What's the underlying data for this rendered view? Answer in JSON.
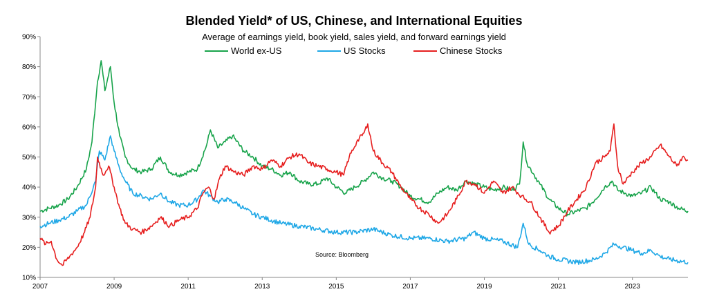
{
  "chart_data": {
    "type": "line",
    "title": "Blended Yield* of US, Chinese, and International Equities",
    "subtitle": "Average of earnings yield, book yield, sales yield, and forward earnings yield",
    "xlabel": "",
    "ylabel": "",
    "x_ticks": [
      "2007",
      "2009",
      "2011",
      "2013",
      "2015",
      "2017",
      "2019",
      "2021",
      "2023"
    ],
    "y_ticks": [
      "10%",
      "20%",
      "30%",
      "40%",
      "50%",
      "60%",
      "70%",
      "80%",
      "90%"
    ],
    "xlim": [
      2007.0,
      2024.5
    ],
    "ylim": [
      10,
      90
    ],
    "grid": false,
    "legend_position": "top-center",
    "annotation": "Source: Bloomberg",
    "series": [
      {
        "name": "World ex-US",
        "color": "#17a34a",
        "points": [
          [
            2007.0,
            32
          ],
          [
            2007.25,
            33
          ],
          [
            2007.5,
            34
          ],
          [
            2007.75,
            36
          ],
          [
            2008.0,
            40
          ],
          [
            2008.25,
            46
          ],
          [
            2008.4,
            55
          ],
          [
            2008.55,
            75
          ],
          [
            2008.65,
            82
          ],
          [
            2008.75,
            72
          ],
          [
            2008.9,
            80
          ],
          [
            2009.0,
            68
          ],
          [
            2009.15,
            57
          ],
          [
            2009.3,
            50
          ],
          [
            2009.5,
            46
          ],
          [
            2009.75,
            45
          ],
          [
            2010.0,
            46
          ],
          [
            2010.25,
            50
          ],
          [
            2010.5,
            45
          ],
          [
            2010.75,
            44
          ],
          [
            2011.0,
            45
          ],
          [
            2011.25,
            46
          ],
          [
            2011.5,
            54
          ],
          [
            2011.6,
            59
          ],
          [
            2011.8,
            53
          ],
          [
            2012.0,
            55
          ],
          [
            2012.2,
            57
          ],
          [
            2012.5,
            52
          ],
          [
            2012.75,
            50
          ],
          [
            2013.0,
            47
          ],
          [
            2013.25,
            46
          ],
          [
            2013.5,
            44
          ],
          [
            2013.75,
            45
          ],
          [
            2014.0,
            42
          ],
          [
            2014.25,
            41
          ],
          [
            2014.5,
            41
          ],
          [
            2014.75,
            43
          ],
          [
            2015.0,
            40
          ],
          [
            2015.25,
            38
          ],
          [
            2015.5,
            40
          ],
          [
            2015.75,
            42
          ],
          [
            2016.0,
            45
          ],
          [
            2016.25,
            43
          ],
          [
            2016.5,
            42
          ],
          [
            2016.75,
            40
          ],
          [
            2017.0,
            37
          ],
          [
            2017.25,
            36
          ],
          [
            2017.5,
            35
          ],
          [
            2017.75,
            38
          ],
          [
            2018.0,
            40
          ],
          [
            2018.25,
            39
          ],
          [
            2018.5,
            42
          ],
          [
            2018.75,
            41
          ],
          [
            2019.0,
            40
          ],
          [
            2019.25,
            39
          ],
          [
            2019.5,
            40
          ],
          [
            2019.75,
            39
          ],
          [
            2019.95,
            41
          ],
          [
            2020.05,
            55
          ],
          [
            2020.15,
            48
          ],
          [
            2020.35,
            44
          ],
          [
            2020.5,
            41
          ],
          [
            2020.75,
            36
          ],
          [
            2021.0,
            33
          ],
          [
            2021.25,
            31
          ],
          [
            2021.5,
            32
          ],
          [
            2021.75,
            33
          ],
          [
            2022.0,
            36
          ],
          [
            2022.25,
            40
          ],
          [
            2022.45,
            42
          ],
          [
            2022.6,
            39
          ],
          [
            2022.8,
            38
          ],
          [
            2023.0,
            37
          ],
          [
            2023.25,
            38
          ],
          [
            2023.5,
            40
          ],
          [
            2023.75,
            36
          ],
          [
            2024.0,
            35
          ],
          [
            2024.25,
            33
          ],
          [
            2024.5,
            32
          ]
        ]
      },
      {
        "name": "US Stocks",
        "color": "#1ea7e6",
        "points": [
          [
            2007.0,
            27
          ],
          [
            2007.25,
            28
          ],
          [
            2007.5,
            29
          ],
          [
            2007.75,
            30
          ],
          [
            2008.0,
            32
          ],
          [
            2008.25,
            34
          ],
          [
            2008.5,
            42
          ],
          [
            2008.6,
            52
          ],
          [
            2008.75,
            49
          ],
          [
            2008.9,
            57
          ],
          [
            2009.0,
            52
          ],
          [
            2009.15,
            46
          ],
          [
            2009.3,
            42
          ],
          [
            2009.5,
            38
          ],
          [
            2009.75,
            37
          ],
          [
            2010.0,
            36
          ],
          [
            2010.25,
            38
          ],
          [
            2010.5,
            35
          ],
          [
            2010.75,
            34
          ],
          [
            2011.0,
            34
          ],
          [
            2011.25,
            36
          ],
          [
            2011.4,
            39
          ],
          [
            2011.6,
            37
          ],
          [
            2011.8,
            35
          ],
          [
            2012.0,
            36
          ],
          [
            2012.25,
            35
          ],
          [
            2012.5,
            33
          ],
          [
            2012.75,
            31
          ],
          [
            2013.0,
            30
          ],
          [
            2013.5,
            28
          ],
          [
            2014.0,
            27
          ],
          [
            2014.5,
            26
          ],
          [
            2015.0,
            25
          ],
          [
            2015.5,
            25
          ],
          [
            2016.0,
            26
          ],
          [
            2016.5,
            24
          ],
          [
            2017.0,
            23
          ],
          [
            2017.5,
            23
          ],
          [
            2018.0,
            22
          ],
          [
            2018.5,
            23
          ],
          [
            2018.7,
            25
          ],
          [
            2019.0,
            23
          ],
          [
            2019.5,
            22
          ],
          [
            2019.9,
            20
          ],
          [
            2020.05,
            28
          ],
          [
            2020.2,
            21
          ],
          [
            2020.5,
            19
          ],
          [
            2020.75,
            17
          ],
          [
            2021.0,
            16
          ],
          [
            2021.5,
            15
          ],
          [
            2022.0,
            16
          ],
          [
            2022.25,
            18
          ],
          [
            2022.5,
            21
          ],
          [
            2022.75,
            20
          ],
          [
            2023.0,
            19
          ],
          [
            2023.25,
            18
          ],
          [
            2023.5,
            19
          ],
          [
            2023.75,
            17
          ],
          [
            2024.0,
            16
          ],
          [
            2024.5,
            15
          ]
        ]
      },
      {
        "name": "Chinese Stocks",
        "color": "#e61e1e",
        "points": [
          [
            2007.0,
            23
          ],
          [
            2007.15,
            21
          ],
          [
            2007.3,
            22
          ],
          [
            2007.45,
            16
          ],
          [
            2007.6,
            14
          ],
          [
            2007.8,
            17
          ],
          [
            2008.0,
            20
          ],
          [
            2008.2,
            25
          ],
          [
            2008.35,
            30
          ],
          [
            2008.5,
            40
          ],
          [
            2008.55,
            50
          ],
          [
            2008.7,
            44
          ],
          [
            2008.85,
            47
          ],
          [
            2009.0,
            40
          ],
          [
            2009.15,
            33
          ],
          [
            2009.3,
            28
          ],
          [
            2009.5,
            26
          ],
          [
            2009.75,
            25
          ],
          [
            2010.0,
            27
          ],
          [
            2010.25,
            30
          ],
          [
            2010.5,
            27
          ],
          [
            2010.75,
            29
          ],
          [
            2011.0,
            30
          ],
          [
            2011.25,
            33
          ],
          [
            2011.4,
            38
          ],
          [
            2011.55,
            40
          ],
          [
            2011.7,
            36
          ],
          [
            2011.85,
            43
          ],
          [
            2012.0,
            47
          ],
          [
            2012.25,
            45
          ],
          [
            2012.5,
            44
          ],
          [
            2012.75,
            47
          ],
          [
            2013.0,
            46
          ],
          [
            2013.25,
            49
          ],
          [
            2013.5,
            47
          ],
          [
            2013.75,
            50
          ],
          [
            2014.0,
            51
          ],
          [
            2014.25,
            48
          ],
          [
            2014.5,
            47
          ],
          [
            2014.75,
            46
          ],
          [
            2015.0,
            45
          ],
          [
            2015.2,
            44
          ],
          [
            2015.35,
            50
          ],
          [
            2015.55,
            55
          ],
          [
            2015.75,
            58
          ],
          [
            2015.85,
            61
          ],
          [
            2016.0,
            52
          ],
          [
            2016.25,
            48
          ],
          [
            2016.5,
            45
          ],
          [
            2016.75,
            40
          ],
          [
            2017.0,
            36
          ],
          [
            2017.25,
            33
          ],
          [
            2017.5,
            31
          ],
          [
            2017.75,
            28
          ],
          [
            2018.0,
            31
          ],
          [
            2018.25,
            36
          ],
          [
            2018.5,
            42
          ],
          [
            2018.75,
            41
          ],
          [
            2019.0,
            38
          ],
          [
            2019.25,
            42
          ],
          [
            2019.5,
            38
          ],
          [
            2019.75,
            40
          ],
          [
            2020.0,
            37
          ],
          [
            2020.25,
            35
          ],
          [
            2020.5,
            30
          ],
          [
            2020.75,
            25
          ],
          [
            2021.0,
            27
          ],
          [
            2021.25,
            32
          ],
          [
            2021.5,
            36
          ],
          [
            2021.75,
            40
          ],
          [
            2022.0,
            48
          ],
          [
            2022.25,
            50
          ],
          [
            2022.4,
            52
          ],
          [
            2022.5,
            61
          ],
          [
            2022.6,
            47
          ],
          [
            2022.75,
            41
          ],
          [
            2023.0,
            45
          ],
          [
            2023.25,
            48
          ],
          [
            2023.5,
            50
          ],
          [
            2023.75,
            54
          ],
          [
            2024.0,
            50
          ],
          [
            2024.2,
            47
          ],
          [
            2024.35,
            50
          ],
          [
            2024.5,
            49
          ]
        ]
      }
    ]
  }
}
